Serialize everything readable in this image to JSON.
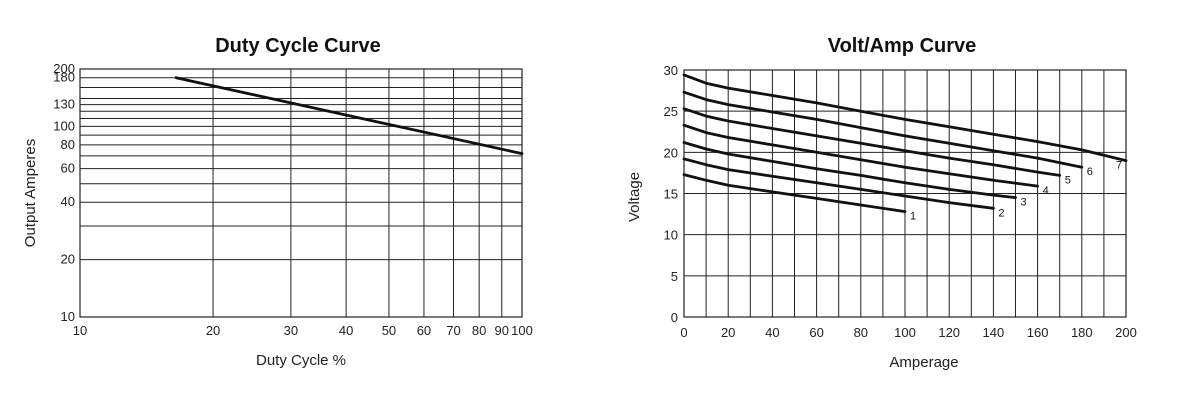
{
  "chart_data": [
    {
      "type": "line",
      "title": "Duty Cycle Curve",
      "xlabel": "Duty Cycle %",
      "ylabel": "Output Amperes",
      "xscale": "log",
      "yscale": "log",
      "xlim": [
        10,
        100
      ],
      "ylim": [
        10,
        200
      ],
      "x_ticks": [
        10,
        20,
        30,
        40,
        50,
        60,
        70,
        80,
        90,
        100
      ],
      "y_ticks": [
        10,
        20,
        40,
        60,
        80,
        100,
        130,
        180,
        200
      ],
      "y_gridlines": [
        10,
        20,
        30,
        40,
        50,
        60,
        70,
        80,
        90,
        100,
        110,
        120,
        130,
        140,
        160,
        180,
        200
      ],
      "grid": true,
      "series": [
        {
          "x": [
            16.5,
            100
          ],
          "y": [
            180,
            72
          ]
        }
      ]
    },
    {
      "type": "line",
      "title": "Volt/Amp Curve",
      "xlabel": "Amperage",
      "ylabel": "Voltage",
      "xlim": [
        0,
        200
      ],
      "ylim": [
        0,
        30
      ],
      "x_ticks": [
        0,
        20,
        40,
        60,
        80,
        100,
        120,
        140,
        160,
        180,
        200
      ],
      "y_ticks": [
        0,
        5,
        10,
        15,
        20,
        25,
        30
      ],
      "x_grid_step": 10,
      "grid": true,
      "series": [
        {
          "name": "1",
          "x": [
            0,
            10,
            20,
            40,
            60,
            80,
            100
          ],
          "y": [
            17.3,
            16.6,
            16.0,
            15.2,
            14.4,
            13.6,
            12.8
          ]
        },
        {
          "name": "2",
          "x": [
            0,
            10,
            20,
            40,
            60,
            80,
            100,
            120,
            140
          ],
          "y": [
            19.2,
            18.5,
            17.9,
            17.1,
            16.3,
            15.5,
            14.7,
            13.9,
            13.2
          ]
        },
        {
          "name": "3",
          "x": [
            0,
            10,
            20,
            40,
            60,
            80,
            100,
            120,
            140,
            150
          ],
          "y": [
            21.2,
            20.4,
            19.8,
            18.9,
            18.0,
            17.2,
            16.3,
            15.5,
            14.8,
            14.5
          ]
        },
        {
          "name": "4",
          "x": [
            0,
            10,
            20,
            40,
            60,
            80,
            100,
            120,
            140,
            160
          ],
          "y": [
            23.3,
            22.4,
            21.8,
            20.9,
            20.0,
            19.1,
            18.2,
            17.4,
            16.6,
            15.9
          ]
        },
        {
          "name": "5",
          "x": [
            0,
            10,
            20,
            40,
            60,
            80,
            100,
            120,
            140,
            160,
            170
          ],
          "y": [
            25.3,
            24.4,
            23.8,
            22.9,
            22.0,
            21.1,
            20.2,
            19.3,
            18.5,
            17.6,
            17.2
          ]
        },
        {
          "name": "6",
          "x": [
            0,
            10,
            20,
            40,
            60,
            80,
            100,
            120,
            140,
            160,
            180
          ],
          "y": [
            27.3,
            26.4,
            25.8,
            24.9,
            24.0,
            23.0,
            22.0,
            21.1,
            20.2,
            19.3,
            18.2
          ]
        },
        {
          "name": "7",
          "x": [
            0,
            10,
            20,
            40,
            60,
            80,
            100,
            120,
            140,
            160,
            180,
            200
          ],
          "y": [
            29.4,
            28.4,
            27.8,
            26.9,
            26.0,
            25.0,
            24.0,
            23.1,
            22.2,
            21.3,
            20.3,
            19.0
          ]
        }
      ]
    }
  ]
}
